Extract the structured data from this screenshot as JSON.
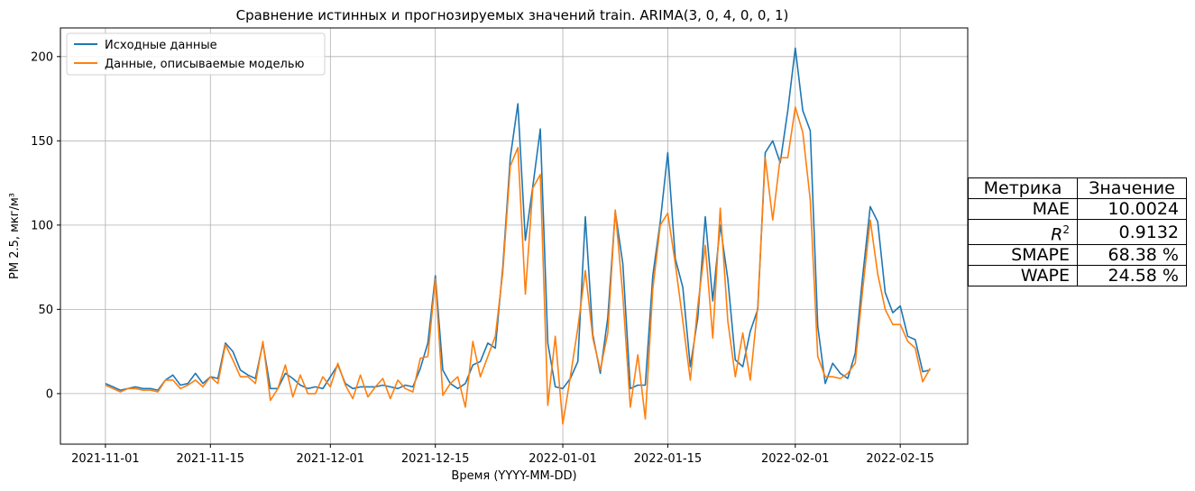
{
  "chart_data": {
    "type": "line",
    "title": "Сравнение истинных и прогнозируемых значений train. ARIMA(3, 0, 4, 0, 0, 1)",
    "xlabel": "Время (YYYY-MM-DD)",
    "ylabel": "PM 2.5, мкг/м³",
    "x_start": "2021-11-01",
    "x_ticks": [
      "2021-11-01",
      "2021-11-15",
      "2021-12-01",
      "2021-12-15",
      "2022-01-01",
      "2022-01-15",
      "2022-02-01",
      "2022-02-15"
    ],
    "x_range": [
      "2021-10-26",
      "2022-02-24"
    ],
    "y_ticks": [
      0,
      50,
      100,
      150,
      200
    ],
    "ylim": [
      -30,
      217
    ],
    "grid": true,
    "legend_position": "top-left",
    "series": [
      {
        "name": "Исходные данные",
        "color": "#1f77b4",
        "values": [
          6,
          4,
          2,
          3,
          4,
          3,
          3,
          2,
          8,
          11,
          5,
          6,
          12,
          6,
          10,
          9,
          30,
          25,
          14,
          11,
          9,
          30,
          3,
          3,
          12,
          9,
          5,
          3,
          4,
          3,
          10,
          17,
          6,
          3,
          4,
          4,
          4,
          5,
          4,
          3,
          5,
          4,
          15,
          30,
          70,
          14,
          6,
          3,
          6,
          17,
          19,
          30,
          27,
          75,
          140,
          172,
          91,
          123,
          157,
          30,
          4,
          3,
          9,
          19,
          105,
          35,
          12,
          45,
          108,
          77,
          3,
          5,
          5,
          70,
          102,
          143,
          80,
          63,
          16,
          45,
          105,
          55,
          100,
          68,
          20,
          16,
          37,
          50,
          143,
          150,
          137,
          168,
          205,
          168,
          156,
          40,
          6,
          18,
          12,
          9,
          24,
          70,
          111,
          102,
          60,
          48,
          52,
          34,
          32,
          13,
          14
        ]
      },
      {
        "name": "Данные, описываемые моделью",
        "color": "#ff7f0e",
        "values": [
          5,
          3,
          1,
          3,
          3,
          2,
          2,
          1,
          8,
          8,
          3,
          5,
          8,
          4,
          10,
          6,
          29,
          20,
          10,
          10,
          6,
          31,
          -4,
          3,
          17,
          -2,
          11,
          0,
          0,
          10,
          4,
          18,
          5,
          -3,
          11,
          -2,
          4,
          9,
          -3,
          8,
          3,
          1,
          21,
          22,
          68,
          -1,
          6,
          10,
          -8,
          31,
          10,
          22,
          34,
          72,
          135,
          146,
          59,
          122,
          130,
          -7,
          34,
          -18,
          10,
          39,
          73,
          33,
          14,
          36,
          109,
          58,
          -8,
          23,
          -15,
          62,
          100,
          107,
          77,
          43,
          8,
          52,
          88,
          33,
          110,
          43,
          10,
          36,
          8,
          52,
          140,
          103,
          140,
          140,
          170,
          155,
          115,
          22,
          10,
          10,
          9,
          12,
          18,
          62,
          103,
          71,
          50,
          41,
          41,
          31,
          27,
          7,
          15
        ]
      }
    ]
  },
  "legend": {
    "items": [
      "Исходные данные",
      "Данные, описываемые моделью"
    ]
  },
  "metrics_table": {
    "header_metric": "Метрика",
    "header_value": "Значение",
    "rows": [
      {
        "metric": "MAE",
        "value": "10.0024"
      },
      {
        "metric": "R2",
        "value": "0.9132"
      },
      {
        "metric": "SMAPE",
        "value": "68.38 %"
      },
      {
        "metric": "WAPE",
        "value": "24.58 %"
      }
    ]
  }
}
